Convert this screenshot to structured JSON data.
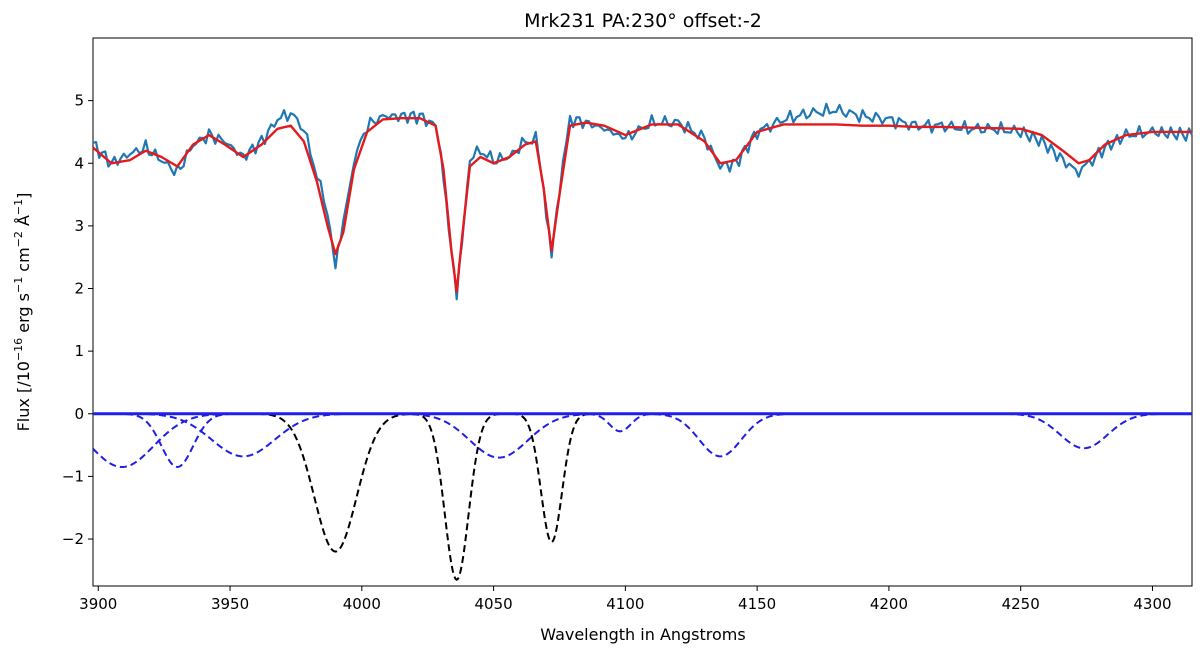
{
  "chart_data": {
    "type": "line",
    "title": "Mrk231 PA:230° offset:-2",
    "xlabel": "Wavelength in Angstroms",
    "ylabel_parts": {
      "prefix": "Flux  [/10",
      "exp1": "−16",
      "mid1": " erg s",
      "exp2": "−1",
      "mid2": " cm",
      "exp3": "−2",
      "mid3": " Å",
      "exp4": "−1",
      "suffix": "]"
    },
    "xlim": [
      3898,
      4315
    ],
    "ylim": [
      -2.75,
      6.0
    ],
    "xticks": [
      3900,
      3950,
      4000,
      4050,
      4100,
      4150,
      4200,
      4250,
      4300
    ],
    "yticks": [
      -2,
      -1,
      0,
      1,
      2,
      3,
      4,
      5
    ],
    "grid": false,
    "colors": {
      "observed": "#1f77b4",
      "fit": "#e41a1c",
      "stellar_components": "#000000",
      "other_components": "#1f1fe6"
    },
    "series": [
      {
        "kind": "observed_spectrum",
        "x": [
          3898,
          3905,
          3912,
          3918,
          3924,
          3930,
          3936,
          3942,
          3948,
          3955,
          3962,
          3968,
          3973,
          3978,
          3983,
          3987,
          3990,
          3993,
          3997,
          4002,
          4008,
          4015,
          4022,
          4028,
          4031,
          4034,
          4036,
          4038,
          4041,
          4045,
          4050,
          4056,
          4062,
          4066,
          4069,
          4072,
          4075,
          4079,
          4085,
          4092,
          4100,
          4110,
          4120,
          4130,
          4136,
          4142,
          4150,
          4160,
          4170,
          4180,
          4190,
          4200,
          4210,
          4220,
          4230,
          4240,
          4250,
          4258,
          4266,
          4272,
          4276,
          4282,
          4290,
          4300,
          4315
        ],
        "y": [
          4.3,
          4.0,
          4.15,
          4.25,
          4.05,
          3.85,
          4.3,
          4.45,
          4.35,
          4.1,
          4.35,
          4.7,
          4.8,
          4.55,
          3.8,
          3.2,
          2.4,
          3.0,
          4.05,
          4.6,
          4.75,
          4.75,
          4.75,
          4.6,
          3.8,
          2.6,
          1.85,
          2.8,
          4.05,
          4.2,
          4.05,
          4.1,
          4.35,
          4.4,
          3.6,
          2.5,
          3.6,
          4.7,
          4.65,
          4.55,
          4.4,
          4.65,
          4.65,
          4.4,
          3.95,
          4.0,
          4.5,
          4.7,
          4.8,
          4.85,
          4.75,
          4.7,
          4.6,
          4.6,
          4.55,
          4.55,
          4.5,
          4.35,
          4.05,
          3.85,
          4.0,
          4.25,
          4.45,
          4.5,
          4.45
        ]
      },
      {
        "kind": "fit",
        "x": [
          3898,
          3905,
          3912,
          3918,
          3924,
          3930,
          3936,
          3942,
          3948,
          3955,
          3962,
          3968,
          3973,
          3978,
          3983,
          3987,
          3990,
          3993,
          3997,
          4002,
          4008,
          4015,
          4022,
          4028,
          4031,
          4034,
          4036,
          4038,
          4041,
          4045,
          4050,
          4056,
          4062,
          4066,
          4069,
          4072,
          4075,
          4079,
          4085,
          4092,
          4100,
          4110,
          4120,
          4130,
          4136,
          4142,
          4150,
          4160,
          4170,
          4180,
          4190,
          4200,
          4210,
          4220,
          4230,
          4240,
          4250,
          4258,
          4266,
          4272,
          4276,
          4282,
          4290,
          4300,
          4315
        ],
        "y": [
          4.25,
          4.0,
          4.05,
          4.2,
          4.1,
          3.95,
          4.3,
          4.45,
          4.3,
          4.1,
          4.3,
          4.55,
          4.6,
          4.35,
          3.7,
          3.0,
          2.55,
          2.9,
          3.9,
          4.5,
          4.7,
          4.72,
          4.72,
          4.6,
          3.9,
          2.6,
          1.95,
          2.8,
          3.95,
          4.1,
          4.0,
          4.1,
          4.3,
          4.35,
          3.6,
          2.6,
          3.5,
          4.6,
          4.65,
          4.6,
          4.45,
          4.62,
          4.62,
          4.35,
          4.0,
          4.05,
          4.5,
          4.62,
          4.62,
          4.62,
          4.6,
          4.6,
          4.58,
          4.58,
          4.57,
          4.56,
          4.55,
          4.45,
          4.2,
          4.0,
          4.05,
          4.3,
          4.45,
          4.5,
          4.5
        ]
      }
    ],
    "components": {
      "stellar": [
        {
          "center": 3990,
          "depth": -2.2,
          "width": 8
        },
        {
          "center": 4036,
          "depth": -2.65,
          "width": 4.5
        },
        {
          "center": 4072,
          "depth": -2.05,
          "width": 4
        }
      ],
      "other": [
        {
          "center": 3909,
          "depth": -0.85,
          "width": 12
        },
        {
          "center": 3930,
          "depth": -0.85,
          "width": 6
        },
        {
          "center": 3955,
          "depth": -0.68,
          "width": 12
        },
        {
          "center": 4052,
          "depth": -0.7,
          "width": 11
        },
        {
          "center": 4098,
          "depth": -0.28,
          "width": 4
        },
        {
          "center": 4136,
          "depth": -0.68,
          "width": 8
        },
        {
          "center": 4274,
          "depth": -0.55,
          "width": 9
        }
      ]
    }
  }
}
